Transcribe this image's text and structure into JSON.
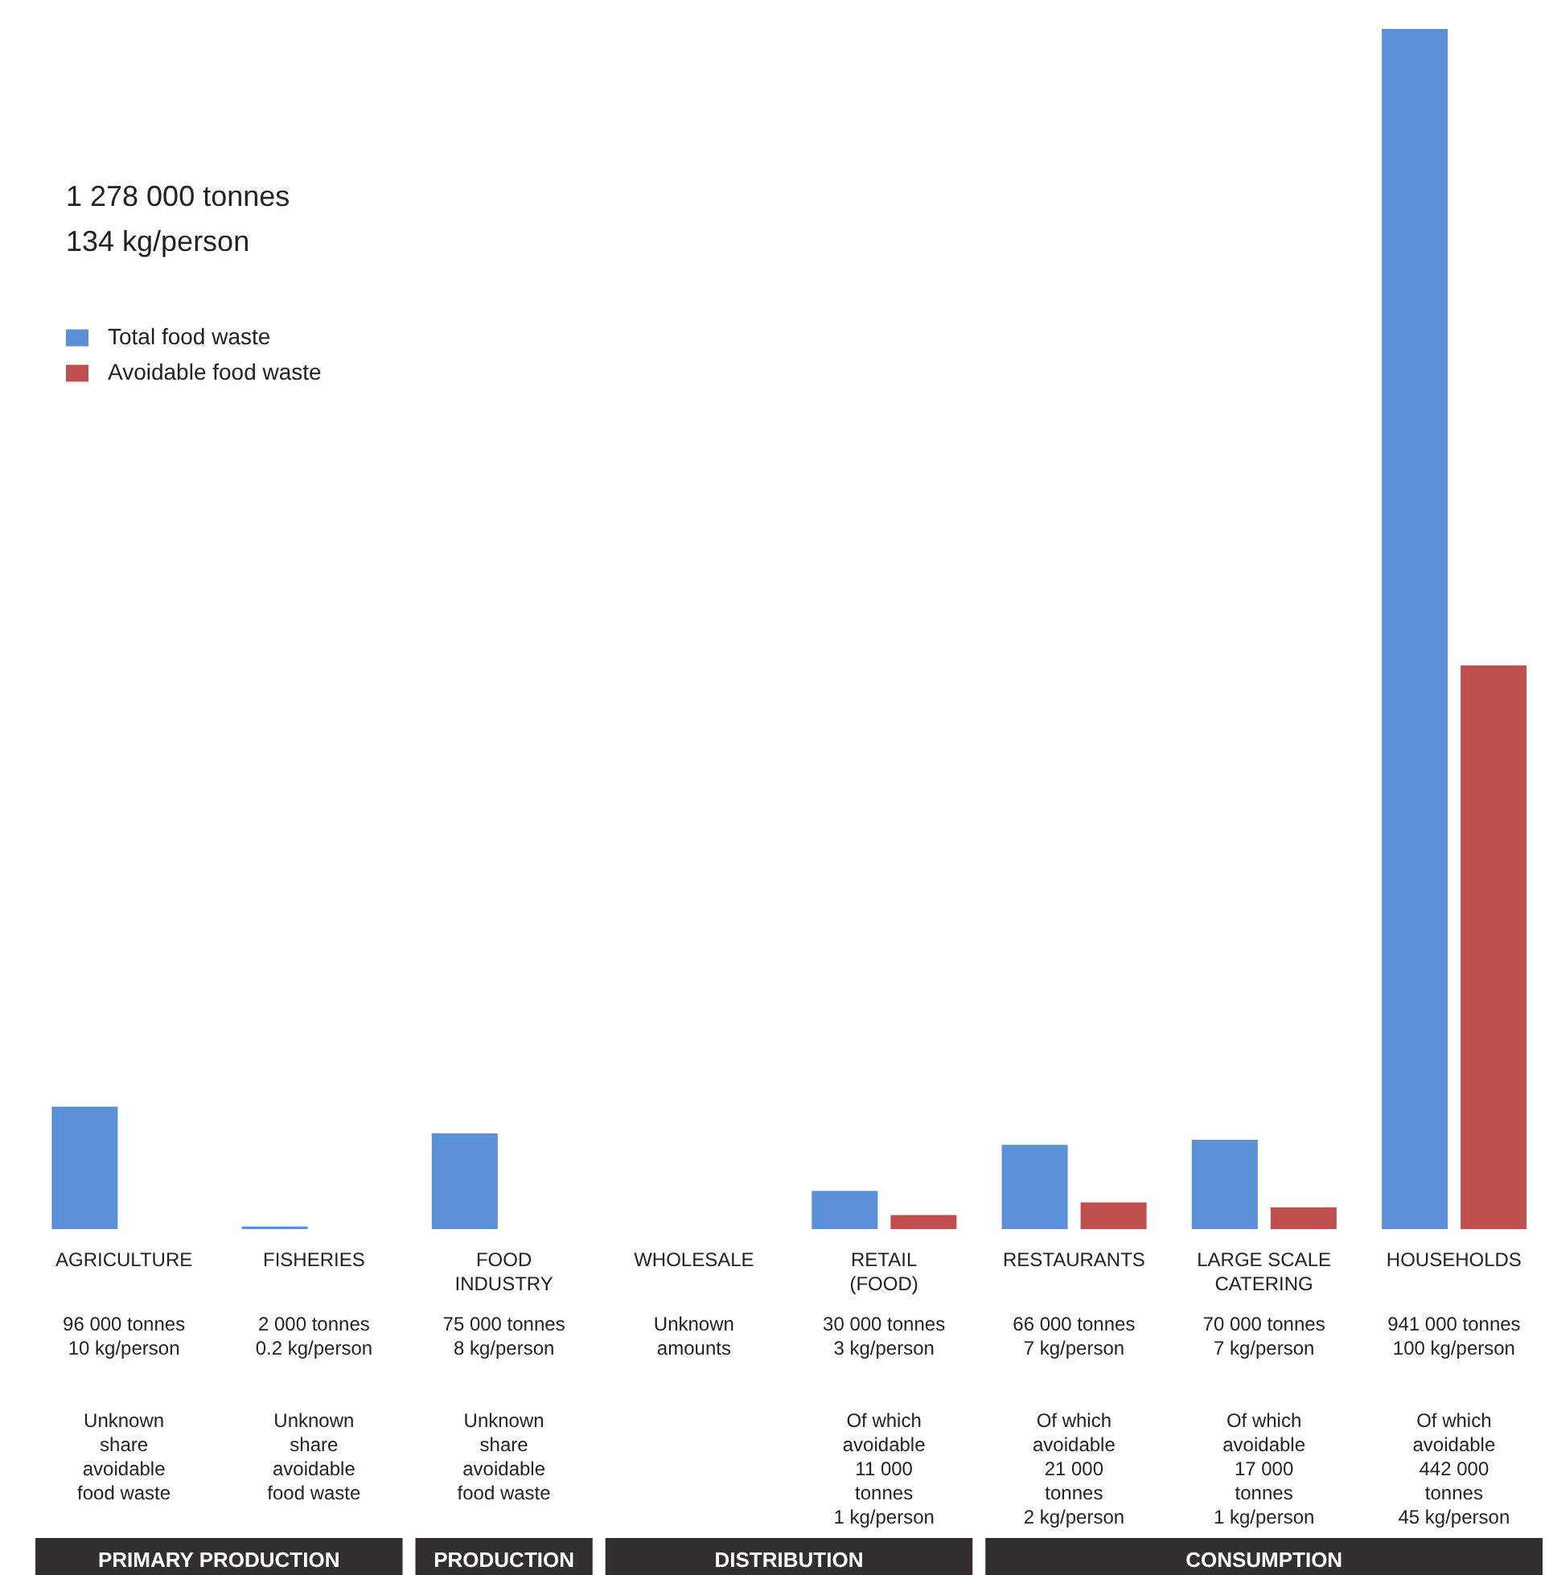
{
  "chart_data": {
    "type": "bar",
    "title": "1 278 000 tonnes",
    "subtitle": "134 kg/person",
    "categories": [
      "AGRICULTURE",
      "FISHERIES",
      "FOOD INDUSTRY",
      "WHOLESALE",
      "RETAIL (FOOD)",
      "RESTAURANTS",
      "LARGE SCALE CATERING",
      "HOUSEHOLDS"
    ],
    "series": [
      {
        "name": "Total food waste",
        "color": "#5b8fd6",
        "values": [
          96000,
          2000,
          75000,
          null,
          30000,
          66000,
          70000,
          941000
        ],
        "value_labels": [
          "96 000 tonnes\n10 kg/person",
          "2 000 tonnes\n0.2 kg/person",
          "75 000 tonnes\n8 kg/person",
          "Unknown amounts",
          "30 000 tonnes\n3 kg/person",
          "66 000 tonnes\n7 kg/person",
          "70 000 tonnes\n7 kg/person",
          "941 000 tonnes\n100 kg/person"
        ]
      },
      {
        "name": "Avoidable food waste",
        "color": "#c0504d",
        "values": [
          null,
          null,
          null,
          null,
          11000,
          21000,
          17000,
          442000
        ],
        "value_labels": [
          "Unknown share avoidable food waste",
          "Unknown share avoidable food waste",
          "Unknown share avoidable food waste",
          null,
          "Of which avoidable\n11 000 tonnes\n1 kg/person",
          "Of which avoidable\n21 000 tonnes\n2 kg/person",
          "Of which avoidable\n17 000 tonnes\n1 kg/person",
          "Of which avoidable\n442 000 tonnes\n45 kg/person"
        ]
      }
    ],
    "legend": "top left",
    "annotations": [
      "PRIMARY PRODUCTION",
      "PRODUCTION",
      "DISTRIBUTION",
      "CONSUMPTION"
    ]
  }
}
